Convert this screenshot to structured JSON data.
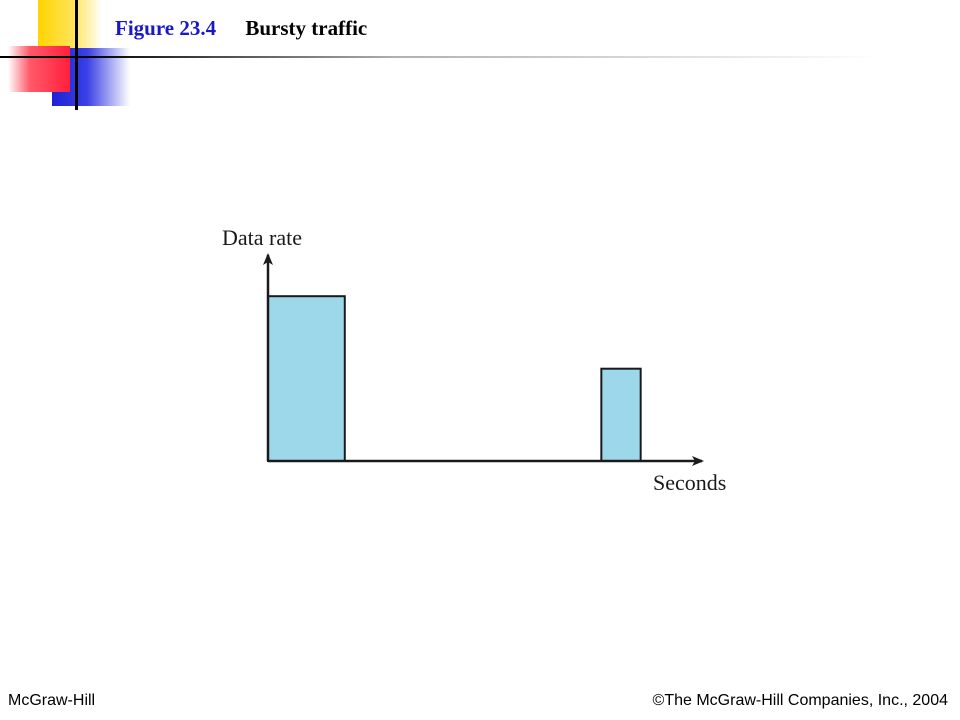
{
  "header": {
    "figure_number": "Figure 23.4",
    "figure_title": "Bursty traffic"
  },
  "footer": {
    "publisher": "McGraw-Hill",
    "copyright": "©The McGraw-Hill Companies, Inc., 2004"
  },
  "colors": {
    "bar_fill": "#9dd8ea",
    "bar_stroke": "#1a1a1a",
    "axis": "#1a1a1a",
    "title_accent": "#1818c8"
  },
  "chart_data": {
    "type": "bar",
    "xlabel": "Seconds",
    "ylabel": "Data rate",
    "xlim": [
      0,
      11
    ],
    "ylim": [
      0,
      1.25
    ],
    "bars": [
      {
        "x_start": 0,
        "x_end": 2.05,
        "value": 1.0
      },
      {
        "x_start": 8.9,
        "x_end": 9.95,
        "value": 0.56
      }
    ],
    "grid": false,
    "legend": "none"
  }
}
